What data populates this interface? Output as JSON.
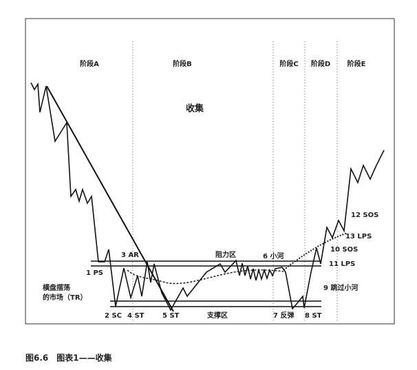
{
  "phases": [
    "阶段A",
    "阶段B",
    "阶段C",
    "阶段D",
    "阶段E"
  ],
  "title": "收集",
  "zones": {
    "resistance": "阻力区",
    "support": "支撑区",
    "range_line1": "横盘摆荡",
    "range_line2": "的市场（TR）"
  },
  "events": [
    "1 PS",
    "2 SC",
    "3 AR",
    "4 ST",
    "5 ST",
    "6 小河",
    "7 反弹",
    "8 ST",
    "9 跳过小河",
    "10 SOS",
    "11 LPS",
    "12 SOS",
    "13 LPS"
  ],
  "caption": "图6.6　图表1——收集"
}
